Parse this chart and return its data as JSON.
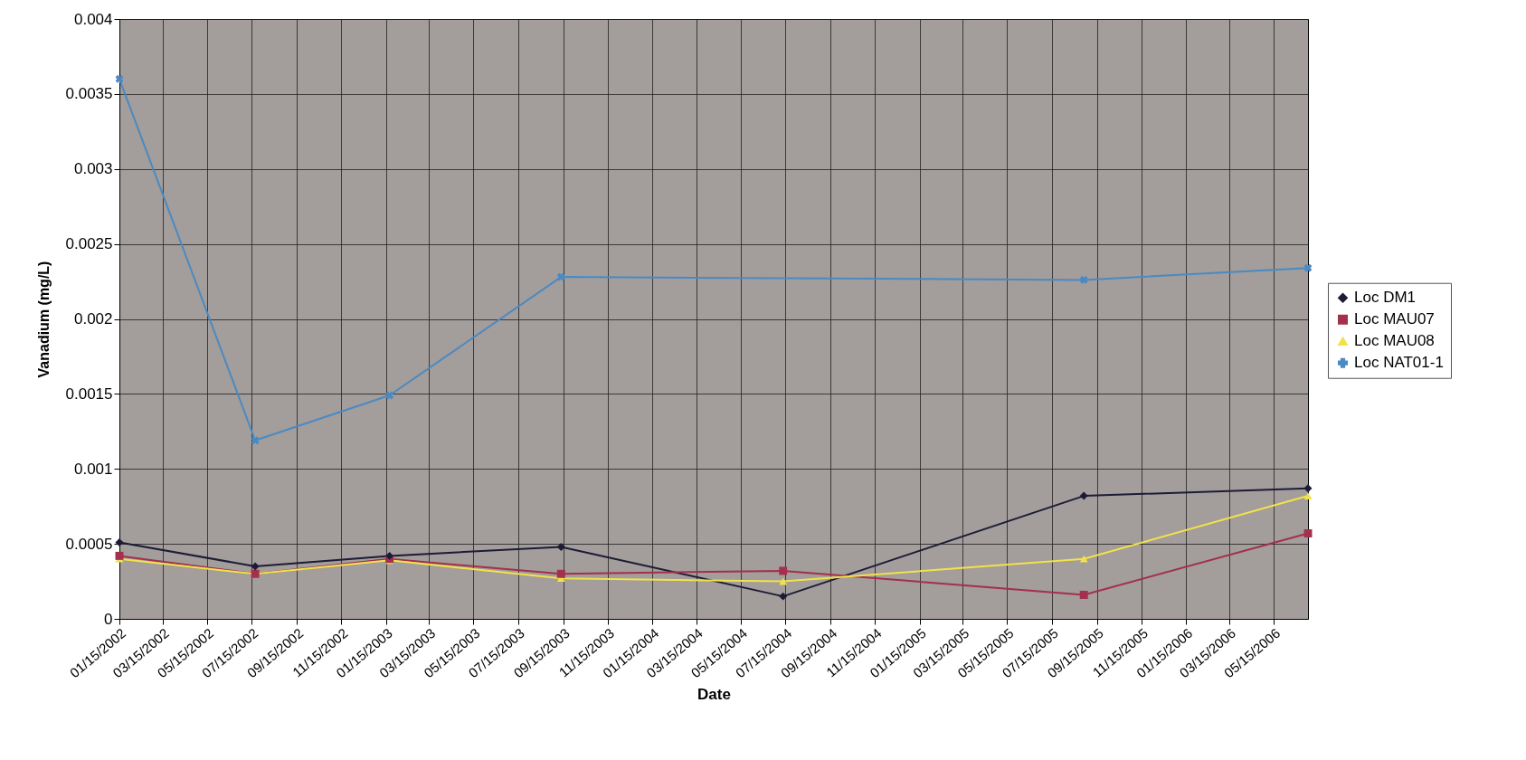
{
  "chart_data": {
    "type": "line",
    "xlabel": "Date",
    "ylabel": "Vanadium (mg/L)",
    "x": [
      "2002-01-15",
      "2002-07-20",
      "2003-01-20",
      "2003-09-12",
      "2004-07-12",
      "2005-08-28",
      "2006-07-01"
    ],
    "series": [
      {
        "name": "Loc DM1",
        "color": "#1c1c36",
        "marker": "diamond",
        "values": [
          0.00051,
          0.00035,
          0.00042,
          0.00048,
          0.00015,
          0.00082,
          0.00087
        ]
      },
      {
        "name": "Loc MAU07",
        "color": "#a3304c",
        "marker": "square",
        "values": [
          0.00042,
          0.0003,
          0.0004,
          0.0003,
          0.00032,
          0.00016,
          0.00057
        ]
      },
      {
        "name": "Loc MAU08",
        "color": "#f2e24a",
        "marker": "triangle",
        "values": [
          0.0004,
          0.0003,
          0.00039,
          0.00027,
          0.00025,
          0.0004,
          0.00082
        ]
      },
      {
        "name": "Loc NAT01-1",
        "color": "#4a8ac2",
        "marker": "cross",
        "x": [
          "2002-01-15",
          "2002-07-20",
          "2003-01-20",
          "2003-09-12",
          "2005-08-28",
          "2006-07-01"
        ],
        "values": [
          0.0036,
          0.00119,
          0.00149,
          0.00228,
          0.00226,
          0.00234
        ]
      }
    ],
    "xlim": [
      "2002-01-15",
      "2006-07-01"
    ],
    "xticks": [
      {
        "value": "2002-01-15",
        "label": "01/15/2002"
      },
      {
        "value": "2002-03-15",
        "label": "03/15/2002"
      },
      {
        "value": "2002-05-15",
        "label": "05/15/2002"
      },
      {
        "value": "2002-07-15",
        "label": "07/15/2002"
      },
      {
        "value": "2002-09-15",
        "label": "09/15/2002"
      },
      {
        "value": "2002-11-15",
        "label": "11/15/2002"
      },
      {
        "value": "2003-01-15",
        "label": "01/15/2003"
      },
      {
        "value": "2003-03-15",
        "label": "03/15/2003"
      },
      {
        "value": "2003-05-15",
        "label": "05/15/2003"
      },
      {
        "value": "2003-07-15",
        "label": "07/15/2003"
      },
      {
        "value": "2003-09-15",
        "label": "09/15/2003"
      },
      {
        "value": "2003-11-15",
        "label": "11/15/2003"
      },
      {
        "value": "2004-01-15",
        "label": "01/15/2004"
      },
      {
        "value": "2004-03-15",
        "label": "03/15/2004"
      },
      {
        "value": "2004-05-15",
        "label": "05/15/2004"
      },
      {
        "value": "2004-07-15",
        "label": "07/15/2004"
      },
      {
        "value": "2004-09-15",
        "label": "09/15/2004"
      },
      {
        "value": "2004-11-15",
        "label": "11/15/2004"
      },
      {
        "value": "2005-01-15",
        "label": "01/15/2005"
      },
      {
        "value": "2005-03-15",
        "label": "03/15/2005"
      },
      {
        "value": "2005-05-15",
        "label": "05/15/2005"
      },
      {
        "value": "2005-07-15",
        "label": "07/15/2005"
      },
      {
        "value": "2005-09-15",
        "label": "09/15/2005"
      },
      {
        "value": "2005-11-15",
        "label": "11/15/2005"
      },
      {
        "value": "2006-01-15",
        "label": "01/15/2006"
      },
      {
        "value": "2006-03-15",
        "label": "03/15/2006"
      },
      {
        "value": "2006-05-15",
        "label": "05/15/2006"
      }
    ],
    "ylim": [
      0,
      0.004
    ],
    "yticks": [
      0,
      0.0005,
      0.001,
      0.0015,
      0.002,
      0.0025,
      0.003,
      0.0035,
      0.004
    ],
    "grid": true,
    "legend": "right",
    "line_style": "solid"
  }
}
